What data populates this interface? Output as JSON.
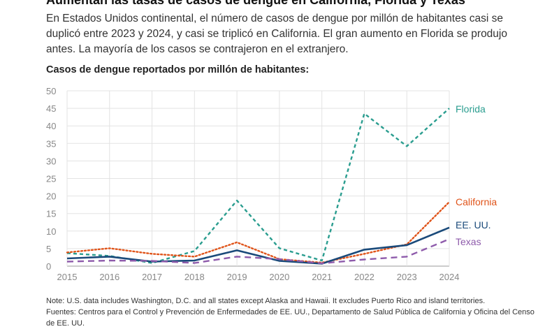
{
  "headline": "Aumentan las tasas de casos de dengue en California, Florida y Texas",
  "subtitle": "En Estados Unidos continental, el número de casos de dengue por millón de habitantes casi se duplicó entre 2023 y 2024, y casi se triplicó en California. El gran aumento en Florida se produjo antes. La mayoría de los casos se contrajeron en el extranjero.",
  "chart_data": {
    "type": "line",
    "title": "Casos de dengue reportados por millón de habitantes:",
    "xlabel": "",
    "ylabel": "",
    "x": [
      2015,
      2016,
      2017,
      2018,
      2019,
      2020,
      2021,
      2022,
      2023,
      2024
    ],
    "ylim": [
      0,
      50
    ],
    "yticks": [
      0,
      5,
      10,
      15,
      20,
      25,
      30,
      35,
      40,
      45,
      50
    ],
    "grid": true,
    "legend": "direct labels at line ends",
    "series": [
      {
        "name": "Florida",
        "color": "#2a9d8f",
        "dash": "dashed",
        "values": [
          3.7,
          2.9,
          0.9,
          4.3,
          18.7,
          5.1,
          1.6,
          43.5,
          34.2,
          45.0
        ]
      },
      {
        "name": "California",
        "color": "#e0541a",
        "dash": "dotted",
        "values": [
          3.9,
          5.1,
          3.5,
          2.7,
          6.8,
          2.0,
          1.0,
          3.5,
          6.2,
          18.3
        ]
      },
      {
        "name": "EE. UU.",
        "color": "#1a4a7a",
        "dash": "solid",
        "values": [
          2.2,
          2.7,
          1.3,
          1.6,
          4.5,
          1.5,
          0.7,
          4.7,
          6.0,
          11.0
        ]
      },
      {
        "name": "Texas",
        "color": "#8e5bab",
        "dash": "longdash",
        "values": [
          1.3,
          1.6,
          1.5,
          0.9,
          2.7,
          2.0,
          0.8,
          1.9,
          2.7,
          7.7
        ]
      }
    ]
  },
  "note": "Note: U.S. data includes Washington, D.C. and all states except Alaska and Hawaii. It excludes Puerto Rico and island territories.",
  "sources": "Fuentes: Centros para el Control y Prevención de Enfermedades de EE. UU., Departamento de Salud Pública de California y Oficina del Censo de EE. UU."
}
